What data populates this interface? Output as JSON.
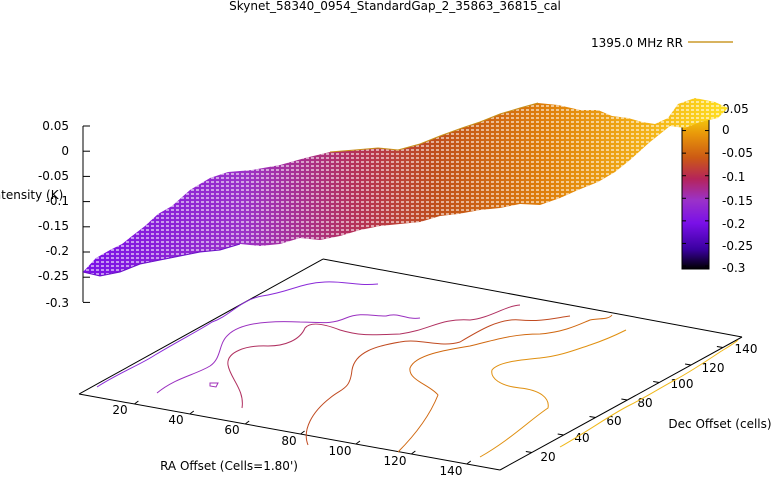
{
  "chart_data": {
    "type": "surface",
    "title": "Skynet_58340_0954_StandardGap_2_35863_36815_cal",
    "xlabel": "RA Offset (Cells=1.80')",
    "ylabel": "Dec Offset (cells)",
    "zlabel": "Intensity (K)",
    "legend": "1395.0 MHz RR",
    "x_ticks": [
      "20",
      "40",
      "60",
      "80",
      "100",
      "120",
      "140"
    ],
    "y_ticks": [
      "20",
      "40",
      "60",
      "80",
      "100",
      "120",
      "140"
    ],
    "z_ticks": [
      "0.05",
      "0",
      "-0.05",
      "-0.1",
      "-0.15",
      "-0.2",
      "-0.25",
      "-0.3"
    ],
    "colorbar_ticks": [
      "0.05",
      "0",
      "-0.05",
      "-0.1",
      "-0.15",
      "-0.2",
      "-0.25",
      "-0.3"
    ],
    "zlim": [
      -0.3,
      0.05
    ],
    "colorbar_colors": [
      "#000000",
      "#6a00d8",
      "#9b32d8",
      "#b5207a",
      "#c8501e",
      "#e0820a",
      "#f2b416",
      "#ffee10"
    ],
    "legend_line_color": "#cc9a2a",
    "surface_mean_profile": {
      "x": [
        5,
        20,
        40,
        60,
        80,
        100,
        120,
        140,
        150
      ],
      "z": [
        -0.25,
        -0.22,
        -0.19,
        -0.15,
        -0.12,
        -0.08,
        -0.04,
        0.0,
        0.02
      ]
    }
  }
}
